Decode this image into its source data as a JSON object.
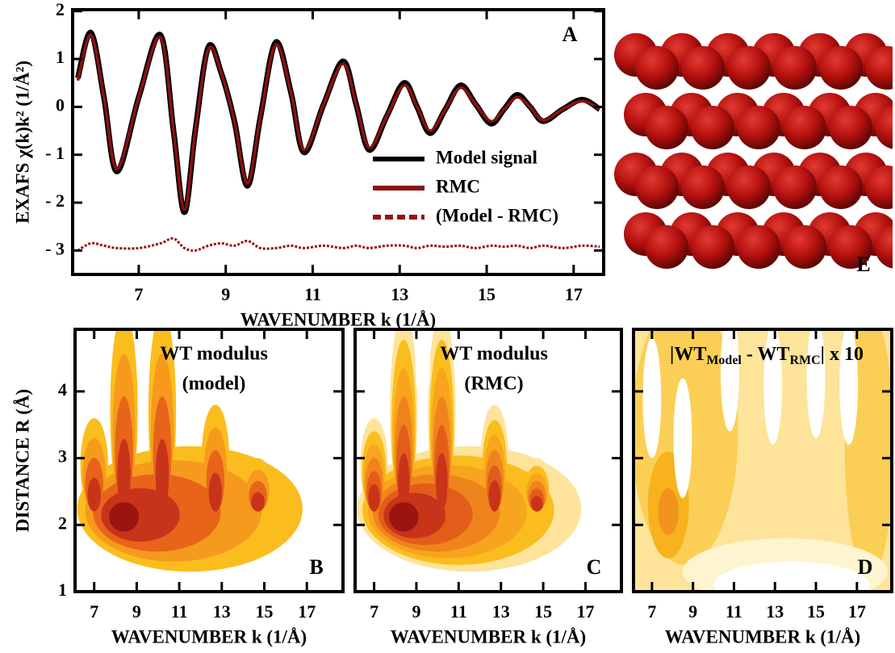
{
  "chart_data": [
    {
      "type": "line",
      "panel": "A",
      "x_label": "WAVENUMBER k (1/Å)",
      "y_label": "EXAFS χ(k)k² (1/Å²)",
      "xlim": [
        5.48,
        17.69
      ],
      "ylim": [
        -3.5,
        2.03
      ],
      "xticks": [
        7,
        9,
        11,
        13,
        15,
        17
      ],
      "yticks": [
        2,
        1,
        0,
        {
          "value": -1,
          "label": "- 1"
        },
        {
          "value": -2,
          "label": "- 2"
        },
        {
          "value": -3,
          "label": "- 3"
        }
      ],
      "x": [
        5.6,
        5.9,
        6.2,
        6.5,
        7.0,
        7.5,
        7.8,
        8.05,
        8.3,
        8.6,
        8.9,
        9.2,
        9.5,
        9.8,
        10.15,
        10.5,
        10.8,
        11.25,
        11.7,
        12.0,
        12.3,
        12.7,
        13.1,
        13.4,
        13.7,
        14.05,
        14.4,
        14.75,
        15.1,
        15.4,
        15.7,
        16.0,
        16.3,
        16.75,
        17.2,
        17.6
      ],
      "series": [
        {
          "name": "Model signal",
          "color": "#000000",
          "linestyle": "solid",
          "values": [
            0.6,
            1.55,
            0.2,
            -1.35,
            0.2,
            1.5,
            -0.5,
            -2.2,
            -0.5,
            1.25,
            0.7,
            -0.3,
            -1.65,
            -0.2,
            1.35,
            0.3,
            -0.95,
            0.05,
            0.95,
            0.05,
            -0.9,
            -0.2,
            0.5,
            0,
            -0.55,
            -0.05,
            0.45,
            0.05,
            -0.35,
            -0.05,
            0.25,
            0,
            -0.3,
            -0.05,
            0.15,
            -0.05
          ]
        },
        {
          "name": "RMC",
          "color": "#8b1010",
          "linestyle": "solid",
          "values": [
            0.55,
            1.5,
            0.2,
            -1.3,
            0.2,
            1.45,
            -0.5,
            -2.15,
            -0.5,
            1.2,
            0.7,
            -0.3,
            -1.6,
            -0.2,
            1.3,
            0.3,
            -0.9,
            0.05,
            0.9,
            0.05,
            -0.85,
            -0.2,
            0.45,
            0,
            -0.5,
            -0.05,
            0.4,
            0.05,
            -0.3,
            -0.05,
            0.2,
            0,
            -0.28,
            -0.05,
            0.12,
            -0.05
          ]
        },
        {
          "name": "(Model - RMC)",
          "color": "#9b1010",
          "linestyle": "dashed",
          "values": [
            -3.0,
            -2.85,
            -2.9,
            -2.95,
            -2.95,
            -2.85,
            -2.75,
            -2.95,
            -3.0,
            -2.9,
            -2.85,
            -2.9,
            -2.8,
            -2.95,
            -2.95,
            -2.9,
            -2.95,
            -2.9,
            -2.95,
            -2.9,
            -2.95,
            -2.9,
            -2.9,
            -2.95,
            -2.9,
            -2.92,
            -2.9,
            -2.95,
            -2.9,
            -2.92,
            -2.9,
            -2.95,
            -2.9,
            -2.95,
            -2.9,
            -2.92
          ]
        }
      ]
    },
    {
      "type": "contour",
      "panel": "B",
      "title": [
        {
          "text": "WT modulus"
        },
        {
          "text": "(model)"
        }
      ],
      "x_label": "WAVENUMBER k (1/Å)",
      "y_label": "DISTANCE R (Å)",
      "xlim": [
        6.1,
        18.7
      ],
      "ylim": [
        1,
        4.93
      ],
      "xticks": [
        7,
        9,
        11,
        13,
        15,
        17
      ],
      "yticks": [
        1,
        2,
        3,
        4
      ],
      "show_ytick_labels": true,
      "colors": [
        "#fbbd1e",
        "#f59a1d",
        "#e8641a",
        "#c8341a",
        "#9b1510"
      ]
    },
    {
      "type": "contour",
      "panel": "C",
      "title": [
        {
          "text": "WT modulus"
        },
        {
          "text": "(RMC)"
        }
      ],
      "x_label": "WAVENUMBER k (1/Å)",
      "xlim": [
        6.1,
        18.7
      ],
      "ylim": [
        1,
        4.93
      ],
      "xticks": [
        7,
        9,
        11,
        13,
        15,
        17
      ],
      "yticks": [
        1,
        2,
        3,
        4
      ],
      "show_ytick_labels": false,
      "colors": [
        "#fde49a",
        "#fbbd1e",
        "#f7a51e",
        "#f0841c",
        "#e35d1a",
        "#c8341a",
        "#9b1510"
      ]
    },
    {
      "type": "contour",
      "panel": "D",
      "title": [
        {
          "text": "|WT"
        },
        {
          "text": "Model",
          "sub": true
        },
        {
          "text": " - WT"
        },
        {
          "text": "RMC",
          "sub": true
        },
        {
          "text": "| x 10"
        }
      ],
      "x_label": "WAVENUMBER k (1/Å)",
      "xlim": [
        6.1,
        18.7
      ],
      "ylim": [
        1,
        4.93
      ],
      "xticks": [
        7,
        9,
        11,
        13,
        15,
        17
      ],
      "yticks": [
        1,
        2,
        3,
        4
      ],
      "show_ytick_labels": false,
      "colors": [
        "#fef4cf",
        "#fde49a",
        "#fbcf55",
        "#f7b21d",
        "#f0941c"
      ]
    },
    {
      "type": "image",
      "panel": "E"
    }
  ]
}
